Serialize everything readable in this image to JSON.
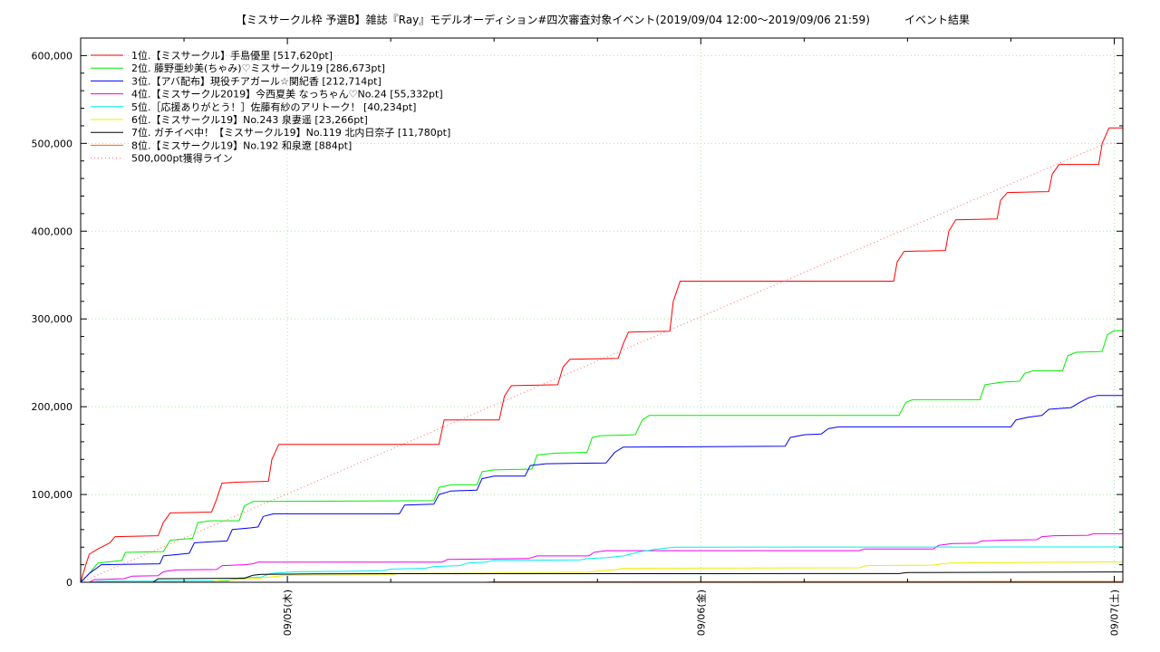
{
  "chart_data": {
    "type": "line",
    "title": "【ミスサークル枠 予選B】雑誌『Ray』モデルオーディション#四次審査対象イベント(2019/09/04 12:00〜2019/09/06 21:59)          イベント結果",
    "xlabel": "",
    "ylabel": "",
    "x_tick_labels": [
      "09/05(木)",
      "09/06(金)",
      "09/07(土)"
    ],
    "y_tick_labels": [
      "0",
      "100,000",
      "200,000",
      "300,000",
      "400,000",
      "500,000",
      "600,000"
    ],
    "ylim": [
      0,
      620000
    ],
    "x_unit": "hours since 2019/09/04 00:00",
    "xlim": [
      12,
      72.5
    ],
    "grid": true,
    "legend_position": "top-left",
    "series": [
      {
        "name": "1位.【ミスサークル】手島優里 [517,620pt]",
        "color": "#ff0000",
        "points": [
          [
            12,
            0
          ],
          [
            12.3,
            20000
          ],
          [
            12.5,
            32000
          ],
          [
            13,
            38000
          ],
          [
            13.7,
            45000
          ],
          [
            14,
            52000
          ],
          [
            16.5,
            53000
          ],
          [
            16.8,
            68000
          ],
          [
            17.2,
            79000
          ],
          [
            19.6,
            80000
          ],
          [
            19.9,
            95000
          ],
          [
            20.2,
            113000
          ],
          [
            21,
            114000
          ],
          [
            22.9,
            115000
          ],
          [
            23.1,
            140000
          ],
          [
            23.5,
            157000
          ],
          [
            32.8,
            157000
          ],
          [
            33.1,
            185000
          ],
          [
            36.3,
            185000
          ],
          [
            36.6,
            212000
          ],
          [
            37,
            224000
          ],
          [
            39.7,
            225000
          ],
          [
            40,
            245000
          ],
          [
            40.4,
            254000
          ],
          [
            43.2,
            255000
          ],
          [
            43.5,
            272000
          ],
          [
            43.8,
            285000
          ],
          [
            46.2,
            286000
          ],
          [
            46.4,
            320000
          ],
          [
            46.8,
            343000
          ],
          [
            59.2,
            343000
          ],
          [
            59.4,
            365000
          ],
          [
            59.8,
            377000
          ],
          [
            62.2,
            378000
          ],
          [
            62.4,
            400000
          ],
          [
            62.8,
            413000
          ],
          [
            65.2,
            414000
          ],
          [
            65.4,
            435000
          ],
          [
            65.8,
            444000
          ],
          [
            68.2,
            445000
          ],
          [
            68.4,
            465000
          ],
          [
            68.8,
            476000
          ],
          [
            71.1,
            476000
          ],
          [
            71.3,
            500000
          ],
          [
            71.7,
            517620
          ],
          [
            72.5,
            517620
          ]
        ]
      },
      {
        "name": "2位. 藤野亜紗美(ちゃみ)♡ミスサークル19 [286,673pt]",
        "color": "#00ee00",
        "points": [
          [
            12,
            0
          ],
          [
            12.5,
            10000
          ],
          [
            13,
            22000
          ],
          [
            14,
            24000
          ],
          [
            14.4,
            25000
          ],
          [
            14.6,
            34000
          ],
          [
            16.8,
            35000
          ],
          [
            17.2,
            48000
          ],
          [
            18.5,
            50000
          ],
          [
            18.8,
            68000
          ],
          [
            19.5,
            70000
          ],
          [
            21.2,
            70000
          ],
          [
            21.5,
            87000
          ],
          [
            22,
            92000
          ],
          [
            32.5,
            93000
          ],
          [
            32.8,
            108000
          ],
          [
            33.5,
            111000
          ],
          [
            35,
            111000
          ],
          [
            35.3,
            126000
          ],
          [
            36,
            128000
          ],
          [
            38.2,
            129000
          ],
          [
            38.5,
            145000
          ],
          [
            39.5,
            147000
          ],
          [
            41.4,
            148000
          ],
          [
            41.7,
            165000
          ],
          [
            42.2,
            167000
          ],
          [
            44.2,
            168000
          ],
          [
            44.6,
            185000
          ],
          [
            45,
            190000
          ],
          [
            59.5,
            190000
          ],
          [
            59.9,
            205000
          ],
          [
            60.3,
            208000
          ],
          [
            64.2,
            208000
          ],
          [
            64.5,
            225000
          ],
          [
            65.5,
            228000
          ],
          [
            66.5,
            229000
          ],
          [
            66.8,
            238000
          ],
          [
            67.3,
            241000
          ],
          [
            69,
            241000
          ],
          [
            69.3,
            258000
          ],
          [
            69.8,
            262000
          ],
          [
            71.3,
            263000
          ],
          [
            71.6,
            282000
          ],
          [
            72,
            286673
          ],
          [
            72.5,
            286673
          ]
        ]
      },
      {
        "name": "3位.【アバ配布】現役チアガール☆関紀香 [212,714pt]",
        "color": "#0000ee",
        "points": [
          [
            12,
            0
          ],
          [
            12.5,
            10000
          ],
          [
            13.2,
            20000
          ],
          [
            16.6,
            21000
          ],
          [
            16.8,
            30000
          ],
          [
            17.8,
            32000
          ],
          [
            18.3,
            33000
          ],
          [
            18.6,
            45000
          ],
          [
            19.5,
            46000
          ],
          [
            20.5,
            47000
          ],
          [
            20.8,
            60000
          ],
          [
            21.9,
            62000
          ],
          [
            22.3,
            63000
          ],
          [
            22.6,
            75000
          ],
          [
            23.2,
            78000
          ],
          [
            30.5,
            78000
          ],
          [
            30.8,
            88000
          ],
          [
            32.5,
            89000
          ],
          [
            32.8,
            100000
          ],
          [
            33.5,
            104000
          ],
          [
            35,
            105000
          ],
          [
            35.3,
            118000
          ],
          [
            36,
            121000
          ],
          [
            37.8,
            121000
          ],
          [
            38.1,
            133000
          ],
          [
            39,
            135000
          ],
          [
            42.5,
            136000
          ],
          [
            43,
            148000
          ],
          [
            43.5,
            154000
          ],
          [
            52.9,
            155000
          ],
          [
            53.2,
            165000
          ],
          [
            54,
            168000
          ],
          [
            55,
            169000
          ],
          [
            55.4,
            175000
          ],
          [
            56,
            177000
          ],
          [
            66,
            177000
          ],
          [
            66.3,
            185000
          ],
          [
            67,
            188000
          ],
          [
            67.8,
            190000
          ],
          [
            68.2,
            197000
          ],
          [
            69.5,
            199000
          ],
          [
            70,
            205000
          ],
          [
            70.5,
            210000
          ],
          [
            71,
            212714
          ],
          [
            72.5,
            212714
          ]
        ]
      },
      {
        "name": "4位.【ミスサークル2019】今西夏美 なっちゃん♡No.24 [55,332pt]",
        "color": "#ee00ee",
        "points": [
          [
            12.5,
            0
          ],
          [
            12.8,
            3000
          ],
          [
            14.5,
            4000
          ],
          [
            15,
            7000
          ],
          [
            16.5,
            7500
          ],
          [
            16.8,
            12000
          ],
          [
            17.5,
            14000
          ],
          [
            19.9,
            14500
          ],
          [
            20.2,
            19000
          ],
          [
            21.5,
            20000
          ],
          [
            22,
            21000
          ],
          [
            22.3,
            23000
          ],
          [
            33,
            23000
          ],
          [
            33.3,
            26000
          ],
          [
            38,
            27000
          ],
          [
            38.5,
            30000
          ],
          [
            41.5,
            30000
          ],
          [
            41.8,
            34000
          ],
          [
            42.5,
            36000
          ],
          [
            57.2,
            36000
          ],
          [
            57.5,
            38000
          ],
          [
            61.5,
            38000
          ],
          [
            61.8,
            42000
          ],
          [
            62.6,
            44000
          ],
          [
            64,
            44500
          ],
          [
            64.3,
            47000
          ],
          [
            65.5,
            48000
          ],
          [
            67.5,
            48500
          ],
          [
            67.8,
            52000
          ],
          [
            68.5,
            53000
          ],
          [
            70.5,
            53500
          ],
          [
            70.8,
            55332
          ],
          [
            72.5,
            55332
          ]
        ]
      },
      {
        "name": "5位.［応援ありがとう！］佐藤有紗のアリトーク！ [40,234pt]",
        "color": "#00eeee",
        "points": [
          [
            12.5,
            0
          ],
          [
            13,
            1000
          ],
          [
            20.5,
            1500
          ],
          [
            21.2,
            5000
          ],
          [
            22.5,
            6000
          ],
          [
            23,
            10000
          ],
          [
            24.5,
            12000
          ],
          [
            29.5,
            13000
          ],
          [
            30,
            15000
          ],
          [
            32,
            16000
          ],
          [
            32.5,
            18000
          ],
          [
            34,
            19000
          ],
          [
            34.5,
            22000
          ],
          [
            35.5,
            23000
          ],
          [
            36,
            25000
          ],
          [
            41,
            25500
          ],
          [
            41.5,
            27000
          ],
          [
            42.5,
            28000
          ],
          [
            43.5,
            30000
          ],
          [
            44.5,
            35000
          ],
          [
            45.5,
            38000
          ],
          [
            46.5,
            40000
          ],
          [
            72.5,
            40234
          ]
        ]
      },
      {
        "name": "6位.【ミスサークル19】No.243 泉妻遥 [23,266pt]",
        "color": "#eeee00",
        "points": [
          [
            19.5,
            0
          ],
          [
            20,
            2000
          ],
          [
            22.5,
            5000
          ],
          [
            24,
            8000
          ],
          [
            30,
            8500
          ],
          [
            30.5,
            10000
          ],
          [
            36,
            10500
          ],
          [
            36.5,
            11000
          ],
          [
            41.5,
            11500
          ],
          [
            42,
            13000
          ],
          [
            43,
            14000
          ],
          [
            43.5,
            16000
          ],
          [
            57.2,
            16500
          ],
          [
            57.6,
            19000
          ],
          [
            61.5,
            19500
          ],
          [
            62,
            21000
          ],
          [
            62.5,
            22000
          ],
          [
            72.5,
            23266
          ]
        ]
      },
      {
        "name": "7位. ガチイベ中！【ミスサークル19】No.119 北内日奈子 [11,780pt]",
        "color": "#000000",
        "points": [
          [
            16.2,
            0
          ],
          [
            16.5,
            4000
          ],
          [
            21.5,
            4500
          ],
          [
            22,
            8000
          ],
          [
            22.5,
            9000
          ],
          [
            25.5,
            9500
          ],
          [
            30,
            9800
          ],
          [
            59.5,
            9900
          ],
          [
            60,
            11000
          ],
          [
            72.5,
            11780
          ]
        ]
      },
      {
        "name": "8位.【ミスサークル19】No.192 和泉遼 [884pt]",
        "color": "#ff6600",
        "points": [
          [
            35.5,
            0
          ],
          [
            36,
            500
          ],
          [
            72.5,
            884
          ]
        ]
      },
      {
        "name": "500,000pt獲得ライン",
        "color": "#ff6666",
        "dashed": true,
        "points": [
          [
            12,
            0
          ],
          [
            71.5,
            500000
          ],
          [
            72.5,
            500000
          ]
        ]
      }
    ]
  }
}
